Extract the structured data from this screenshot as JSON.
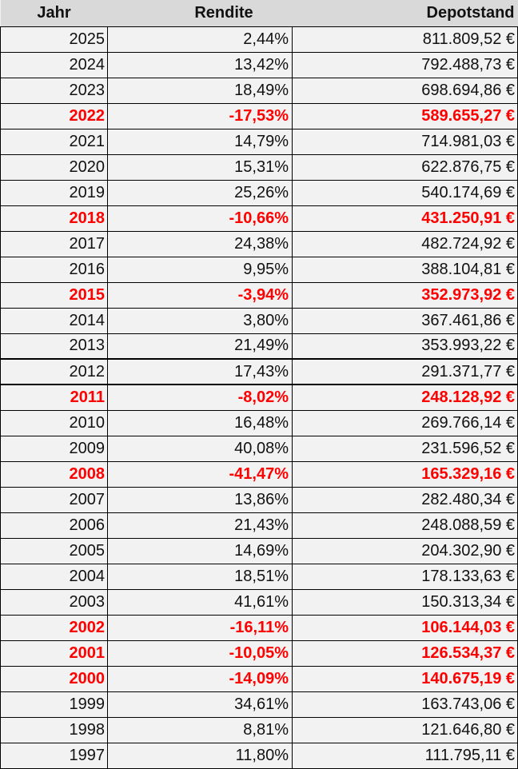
{
  "headers": {
    "year": "Jahr",
    "rendite": "Rendite",
    "depot": "Depotstand"
  },
  "colors": {
    "negative": "#ff0000",
    "header_bg": "#d9d9d9",
    "cell_bg": "#f2f2f2"
  },
  "rows": [
    {
      "year": "2025",
      "rendite": "2,44%",
      "depot": "811.809,52 €",
      "negative": false
    },
    {
      "year": "2024",
      "rendite": "13,42%",
      "depot": "792.488,73 €",
      "negative": false
    },
    {
      "year": "2023",
      "rendite": "18,49%",
      "depot": "698.694,86 €",
      "negative": false
    },
    {
      "year": "2022",
      "rendite": "-17,53%",
      "depot": "589.655,27 €",
      "negative": true
    },
    {
      "year": "2021",
      "rendite": "14,79%",
      "depot": "714.981,03 €",
      "negative": false
    },
    {
      "year": "2020",
      "rendite": "15,31%",
      "depot": "622.876,75 €",
      "negative": false
    },
    {
      "year": "2019",
      "rendite": "25,26%",
      "depot": "540.174,69 €",
      "negative": false
    },
    {
      "year": "2018",
      "rendite": "-10,66%",
      "depot": "431.250,91 €",
      "negative": true
    },
    {
      "year": "2017",
      "rendite": "24,38%",
      "depot": "482.724,92 €",
      "negative": false
    },
    {
      "year": "2016",
      "rendite": "9,95%",
      "depot": "388.104,81 €",
      "negative": false
    },
    {
      "year": "2015",
      "rendite": "-3,94%",
      "depot": "352.973,92 €",
      "negative": true
    },
    {
      "year": "2014",
      "rendite": "3,80%",
      "depot": "367.461,86 €",
      "negative": false
    },
    {
      "year": "2013",
      "rendite": "21,49%",
      "depot": "353.993,22 €",
      "negative": false
    },
    {
      "year": "2012",
      "rendite": "17,43%",
      "depot": "291.371,77 €",
      "negative": false
    },
    {
      "year": "2011",
      "rendite": "-8,02%",
      "depot": "248.128,92 €",
      "negative": true
    },
    {
      "year": "2010",
      "rendite": "16,48%",
      "depot": "269.766,14 €",
      "negative": false
    },
    {
      "year": "2009",
      "rendite": "40,08%",
      "depot": "231.596,52 €",
      "negative": false
    },
    {
      "year": "2008",
      "rendite": "-41,47%",
      "depot": "165.329,16 €",
      "negative": true
    },
    {
      "year": "2007",
      "rendite": "13,86%",
      "depot": "282.480,34 €",
      "negative": false
    },
    {
      "year": "2006",
      "rendite": "21,43%",
      "depot": "248.088,59 €",
      "negative": false
    },
    {
      "year": "2005",
      "rendite": "14,69%",
      "depot": "204.302,90 €",
      "negative": false
    },
    {
      "year": "2004",
      "rendite": "18,51%",
      "depot": "178.133,63 €",
      "negative": false
    },
    {
      "year": "2003",
      "rendite": "41,61%",
      "depot": "150.313,34 €",
      "negative": false
    },
    {
      "year": "2002",
      "rendite": "-16,11%",
      "depot": "106.144,03 €",
      "negative": true
    },
    {
      "year": "2001",
      "rendite": "-10,05%",
      "depot": "126.534,37 €",
      "negative": true
    },
    {
      "year": "2000",
      "rendite": "-14,09%",
      "depot": "140.675,19 €",
      "negative": true
    },
    {
      "year": "1999",
      "rendite": "34,61%",
      "depot": "163.743,06 €",
      "negative": false
    },
    {
      "year": "1998",
      "rendite": "8,81%",
      "depot": "121.646,80 €",
      "negative": false
    },
    {
      "year": "1997",
      "rendite": "11,80%",
      "depot": "111.795,11 €",
      "negative": false
    }
  ]
}
